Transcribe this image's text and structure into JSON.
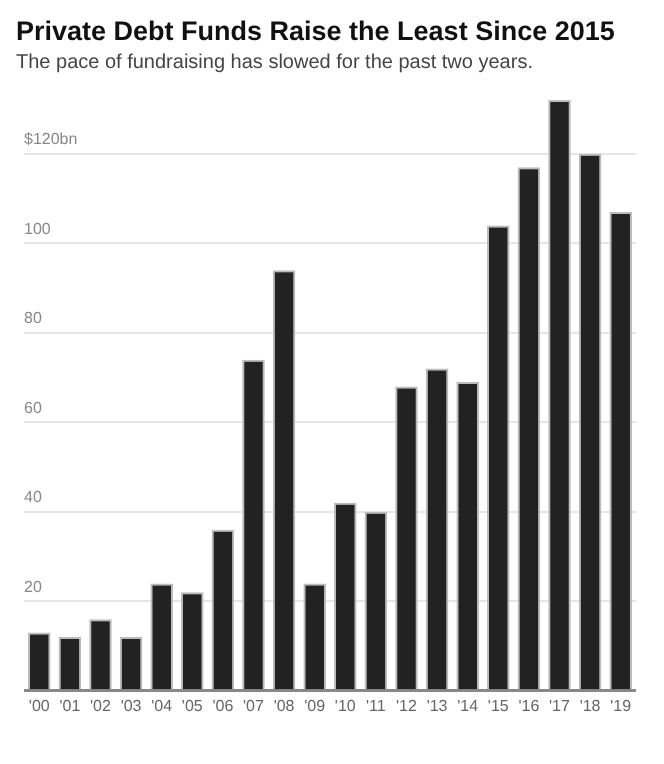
{
  "chart_data": {
    "type": "bar",
    "title": "Private Debt Funds Raise the Least Since 2015",
    "subtitle": "The pace of fundraising has slowed for the past two years.",
    "categories": [
      "'00",
      "'01",
      "'02",
      "'03",
      "'04",
      "'05",
      "'06",
      "'07",
      "'08",
      "'09",
      "'10",
      "'11",
      "'12",
      "'13",
      "'14",
      "'15",
      "'16",
      "'17",
      "'18",
      "'19"
    ],
    "values": [
      13,
      12,
      16,
      12,
      24,
      22,
      36,
      74,
      94,
      24,
      42,
      40,
      68,
      72,
      69,
      104,
      117,
      132,
      120,
      107
    ],
    "color": "#222222",
    "ylim": [
      0,
      133
    ],
    "yticks": [
      {
        "value": 0,
        "label": null
      },
      20,
      40,
      60,
      80,
      100,
      {
        "value": 120,
        "label": "$120bn"
      }
    ],
    "grid": "y"
  }
}
